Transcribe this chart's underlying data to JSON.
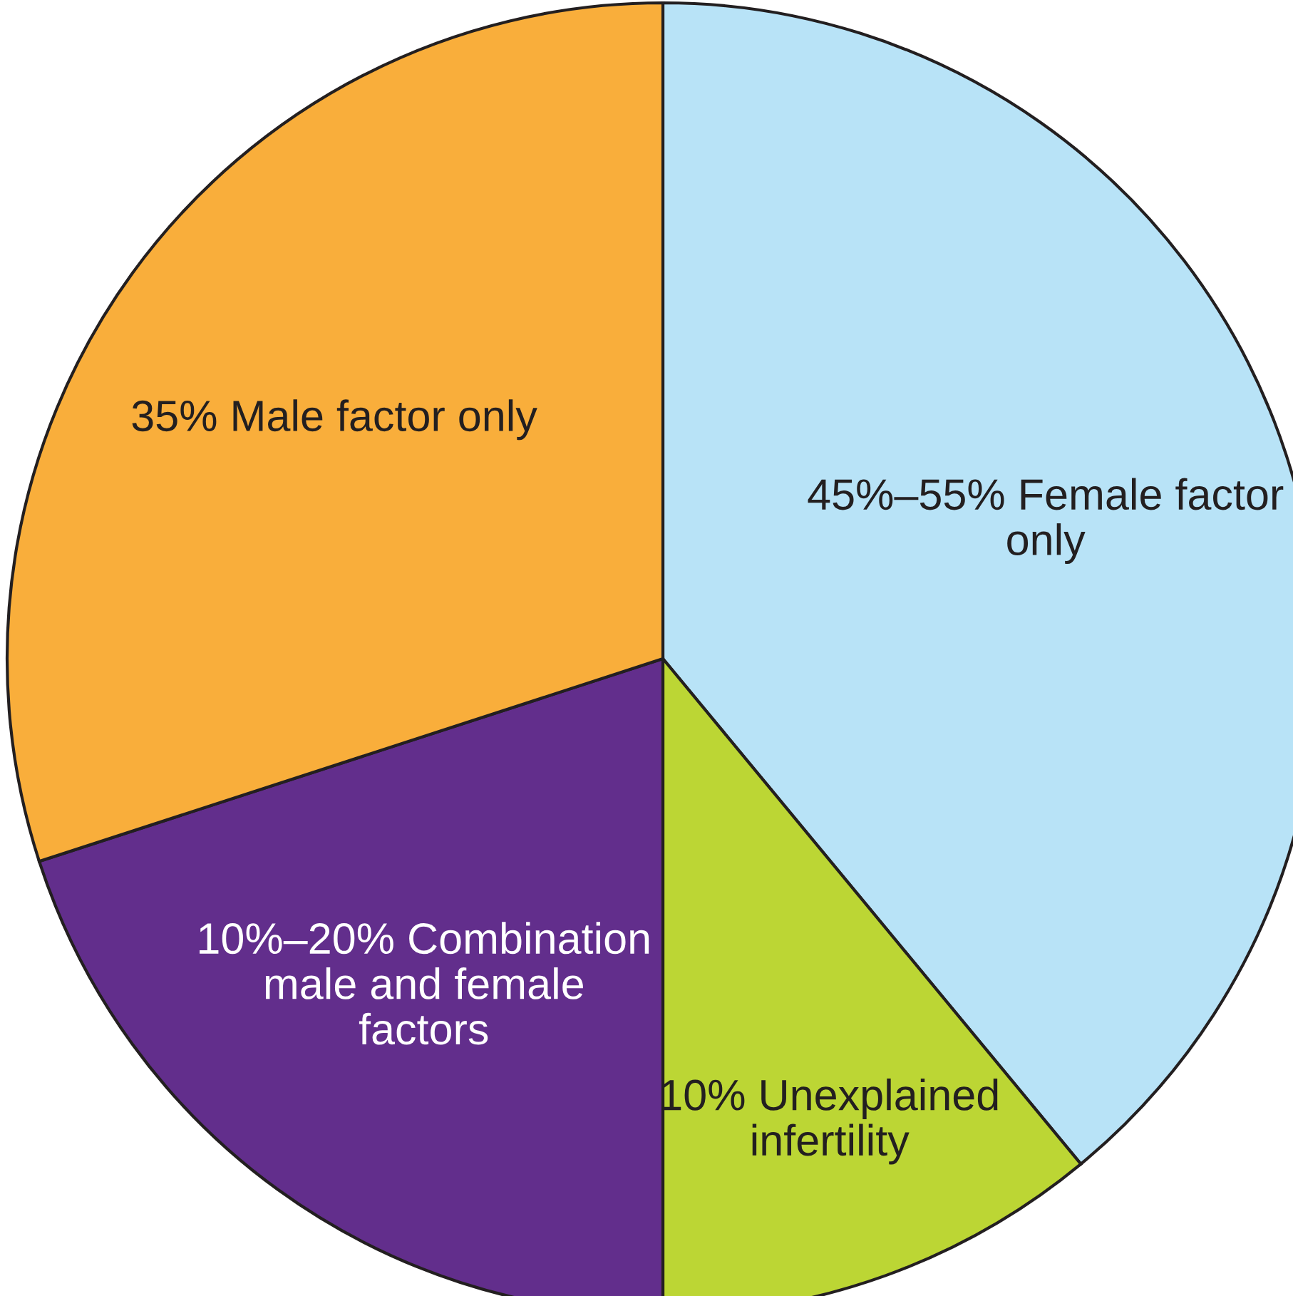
{
  "chart_data": {
    "type": "pie",
    "categories": [
      "45%–55% Female factor\nonly",
      "10% Unexplained\ninfertility",
      "10%–20% Combination\nmale and female\nfactors",
      "35% Male factor only"
    ],
    "values": [
      39,
      11,
      20,
      30
    ],
    "colors": [
      "#b8e3f7",
      "#bcd634",
      "#622e8c",
      "#f9ae3b"
    ]
  }
}
